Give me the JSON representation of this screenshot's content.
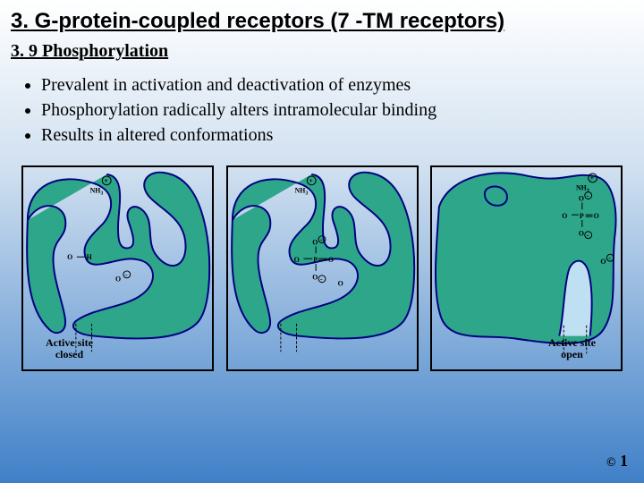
{
  "title": "3.   G-protein-coupled receptors (7 -TM receptors)",
  "subtitle": "3. 9  Phosphorylation",
  "bullets": [
    "Prevalent in activation and deactivation of enzymes",
    "Phosphorylation radically alters intramolecular binding",
    "Results in altered conformations"
  ],
  "panel_caption_closed": "Active site closed",
  "panel_caption_open": "Active site open",
  "colors": {
    "protein_fill": "#2ea68a",
    "protein_stroke": "#000080",
    "protein_stroke_width": 2,
    "background_start": "#ffffff",
    "background_mid": "#d0e0f0",
    "background_end": "#4080c8",
    "border": "#000000",
    "dash_color": "#000000"
  },
  "labels": {
    "nh3": "NH",
    "sub3": "3",
    "O": "O",
    "H": "H",
    "P": "P"
  },
  "footer": {
    "copyright": "©",
    "page": "1"
  }
}
